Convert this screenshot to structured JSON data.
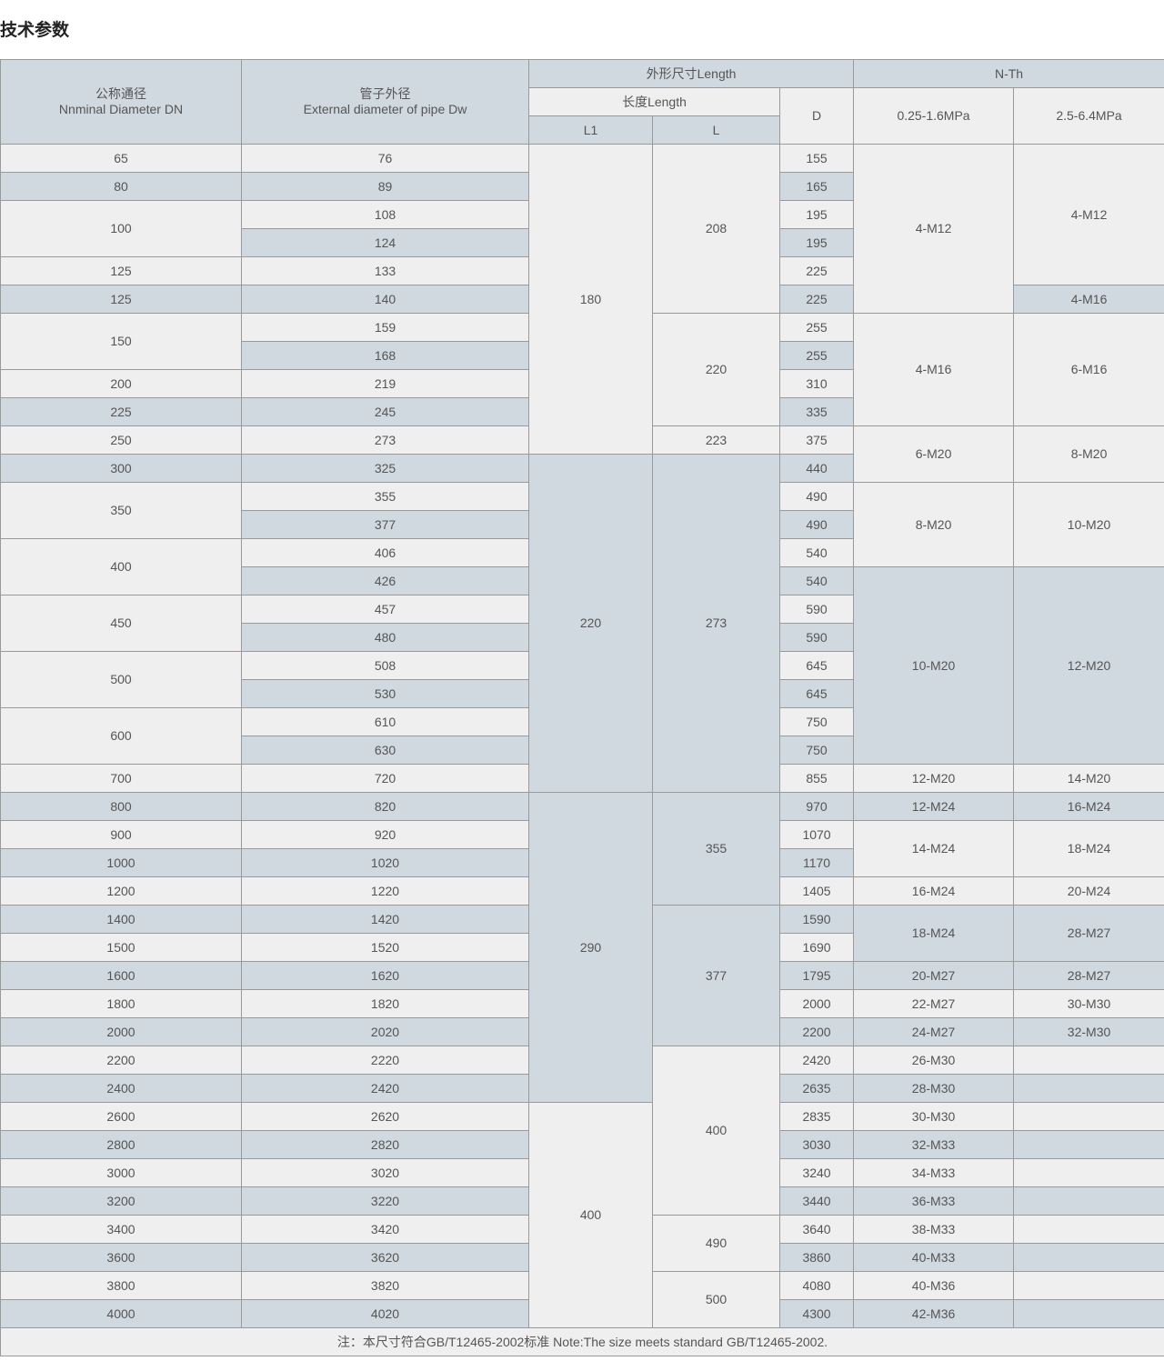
{
  "page_title": "技术参数",
  "header": {
    "dn_cn": "公称通径",
    "dn_en": "Nnminal Diameter DN",
    "dw_cn": "管子外径",
    "dw_en": "External diameter of pipe Dw",
    "outer_size": "外形尺寸Length",
    "length": "长度Length",
    "l1": "L1",
    "l": "L",
    "d": "D",
    "n_th": "N-Th",
    "p1": "0.25-1.6MPa",
    "p2": "2.5-6.4MPa"
  },
  "rows": [
    {
      "dn": "65",
      "dw": "76",
      "d": "155"
    },
    {
      "dn": "80",
      "dw": "89",
      "d": "165"
    },
    {
      "dn": "100",
      "dw": "108",
      "d": "195"
    },
    {
      "dn": "",
      "dw": "124",
      "d": "195"
    },
    {
      "dn": "125",
      "dw": "133",
      "d": "225"
    },
    {
      "dn": "125",
      "dw": "140",
      "d": "225"
    },
    {
      "dn": "150",
      "dw": "159",
      "d": "255"
    },
    {
      "dn": "",
      "dw": "168",
      "d": "255"
    },
    {
      "dn": "200",
      "dw": "219",
      "d": "310"
    },
    {
      "dn": "225",
      "dw": "245",
      "d": "335"
    },
    {
      "dn": "250",
      "dw": "273",
      "d": "375"
    },
    {
      "dn": "300",
      "dw": "325",
      "d": "440"
    },
    {
      "dn": "350",
      "dw": "355",
      "d": "490"
    },
    {
      "dn": "",
      "dw": "377",
      "d": "490"
    },
    {
      "dn": "400",
      "dw": "406",
      "d": "540"
    },
    {
      "dn": "",
      "dw": "426",
      "d": "540"
    },
    {
      "dn": "450",
      "dw": "457",
      "d": "590"
    },
    {
      "dn": "",
      "dw": "480",
      "d": "590"
    },
    {
      "dn": "500",
      "dw": "508",
      "d": "645"
    },
    {
      "dn": "",
      "dw": "530",
      "d": "645"
    },
    {
      "dn": "600",
      "dw": "610",
      "d": "750"
    },
    {
      "dn": "",
      "dw": "630",
      "d": "750"
    },
    {
      "dn": "700",
      "dw": "720",
      "d": "855"
    },
    {
      "dn": "800",
      "dw": "820",
      "d": "970"
    },
    {
      "dn": "900",
      "dw": "920",
      "d": "1070"
    },
    {
      "dn": "1000",
      "dw": "1020",
      "d": "1170"
    },
    {
      "dn": "1200",
      "dw": "1220",
      "d": "1405"
    },
    {
      "dn": "1400",
      "dw": "1420",
      "d": "1590"
    },
    {
      "dn": "1500",
      "dw": "1520",
      "d": "1690"
    },
    {
      "dn": "1600",
      "dw": "1620",
      "d": "1795"
    },
    {
      "dn": "1800",
      "dw": "1820",
      "d": "2000"
    },
    {
      "dn": "2000",
      "dw": "2020",
      "d": "2200"
    },
    {
      "dn": "2200",
      "dw": "2220",
      "d": "2420"
    },
    {
      "dn": "2400",
      "dw": "2420",
      "d": "2635"
    },
    {
      "dn": "2600",
      "dw": "2620",
      "d": "2835"
    },
    {
      "dn": "2800",
      "dw": "2820",
      "d": "3030"
    },
    {
      "dn": "3000",
      "dw": "3020",
      "d": "3240"
    },
    {
      "dn": "3200",
      "dw": "3220",
      "d": "3440"
    },
    {
      "dn": "3400",
      "dw": "3420",
      "d": "3640"
    },
    {
      "dn": "3600",
      "dw": "3620",
      "d": "3860"
    },
    {
      "dn": "3800",
      "dw": "3820",
      "d": "4080"
    },
    {
      "dn": "4000",
      "dw": "4020",
      "d": "4300"
    }
  ],
  "dn_merged_starts": [
    2,
    6,
    12,
    14,
    16,
    18,
    20
  ],
  "l1_groups": [
    {
      "value": "180",
      "span": 11
    },
    {
      "value": "220",
      "span": 12
    },
    {
      "value": "290",
      "span": 11
    },
    {
      "value": "400",
      "span": 8
    }
  ],
  "l_groups": [
    {
      "value": "208",
      "span": 6
    },
    {
      "value": "220",
      "span": 4
    },
    {
      "value": "223",
      "span": 1
    },
    {
      "value": "273",
      "span": 12
    },
    {
      "value": "355",
      "span": 4
    },
    {
      "value": "377",
      "span": 5
    },
    {
      "value": "400",
      "span": 6
    },
    {
      "value": "490",
      "span": 2
    },
    {
      "value": "500",
      "span": 2
    }
  ],
  "p1_groups": [
    {
      "value": "4-M12",
      "span": 6
    },
    {
      "value": "4-M16",
      "span": 4
    },
    {
      "value": "6-M20",
      "span": 2
    },
    {
      "value": "8-M20",
      "span": 3
    },
    {
      "value": "10-M20",
      "span": 7
    },
    {
      "value": "12-M20",
      "span": 1
    },
    {
      "value": "12-M24",
      "span": 1
    },
    {
      "value": "14-M24",
      "span": 2
    },
    {
      "value": "16-M24",
      "span": 1
    },
    {
      "value": "18-M24",
      "span": 2
    },
    {
      "value": "20-M27",
      "span": 1
    },
    {
      "value": "22-M27",
      "span": 1
    },
    {
      "value": "24-M27",
      "span": 1
    },
    {
      "value": "26-M30",
      "span": 1
    },
    {
      "value": "28-M30",
      "span": 1
    },
    {
      "value": "30-M30",
      "span": 1
    },
    {
      "value": "32-M33",
      "span": 1
    },
    {
      "value": "34-M33",
      "span": 1
    },
    {
      "value": "36-M33",
      "span": 1
    },
    {
      "value": "38-M33",
      "span": 1
    },
    {
      "value": "40-M33",
      "span": 1
    },
    {
      "value": "40-M36",
      "span": 1
    },
    {
      "value": "42-M36",
      "span": 1
    }
  ],
  "p2_groups": [
    {
      "value": "4-M12",
      "span": 5
    },
    {
      "value": "4-M16",
      "span": 1
    },
    {
      "value": "6-M16",
      "span": 4
    },
    {
      "value": "8-M20",
      "span": 2
    },
    {
      "value": "10-M20",
      "span": 3
    },
    {
      "value": "12-M20",
      "span": 7
    },
    {
      "value": "14-M20",
      "span": 1
    },
    {
      "value": "16-M24",
      "span": 1
    },
    {
      "value": "18-M24",
      "span": 2
    },
    {
      "value": "20-M24",
      "span": 1
    },
    {
      "value": "28-M27",
      "span": 2
    },
    {
      "value": "28-M27",
      "span": 1
    },
    {
      "value": "30-M30",
      "span": 1
    },
    {
      "value": "32-M30",
      "span": 1
    },
    {
      "value": "",
      "span": 1
    },
    {
      "value": "",
      "span": 1
    },
    {
      "value": "",
      "span": 1
    },
    {
      "value": "",
      "span": 1
    },
    {
      "value": "",
      "span": 1
    },
    {
      "value": "",
      "span": 1
    },
    {
      "value": "",
      "span": 1
    },
    {
      "value": "",
      "span": 1
    },
    {
      "value": "",
      "span": 1
    },
    {
      "value": "",
      "span": 1
    }
  ],
  "footer_note": "注：本尺寸符合GB/T12465-2002标准 Note:The size meets standard GB/T12465-2002.",
  "colors": {
    "light": "#efefef",
    "blue": "#d0d9e0",
    "border": "#9a9a9a",
    "text": "#555555"
  }
}
